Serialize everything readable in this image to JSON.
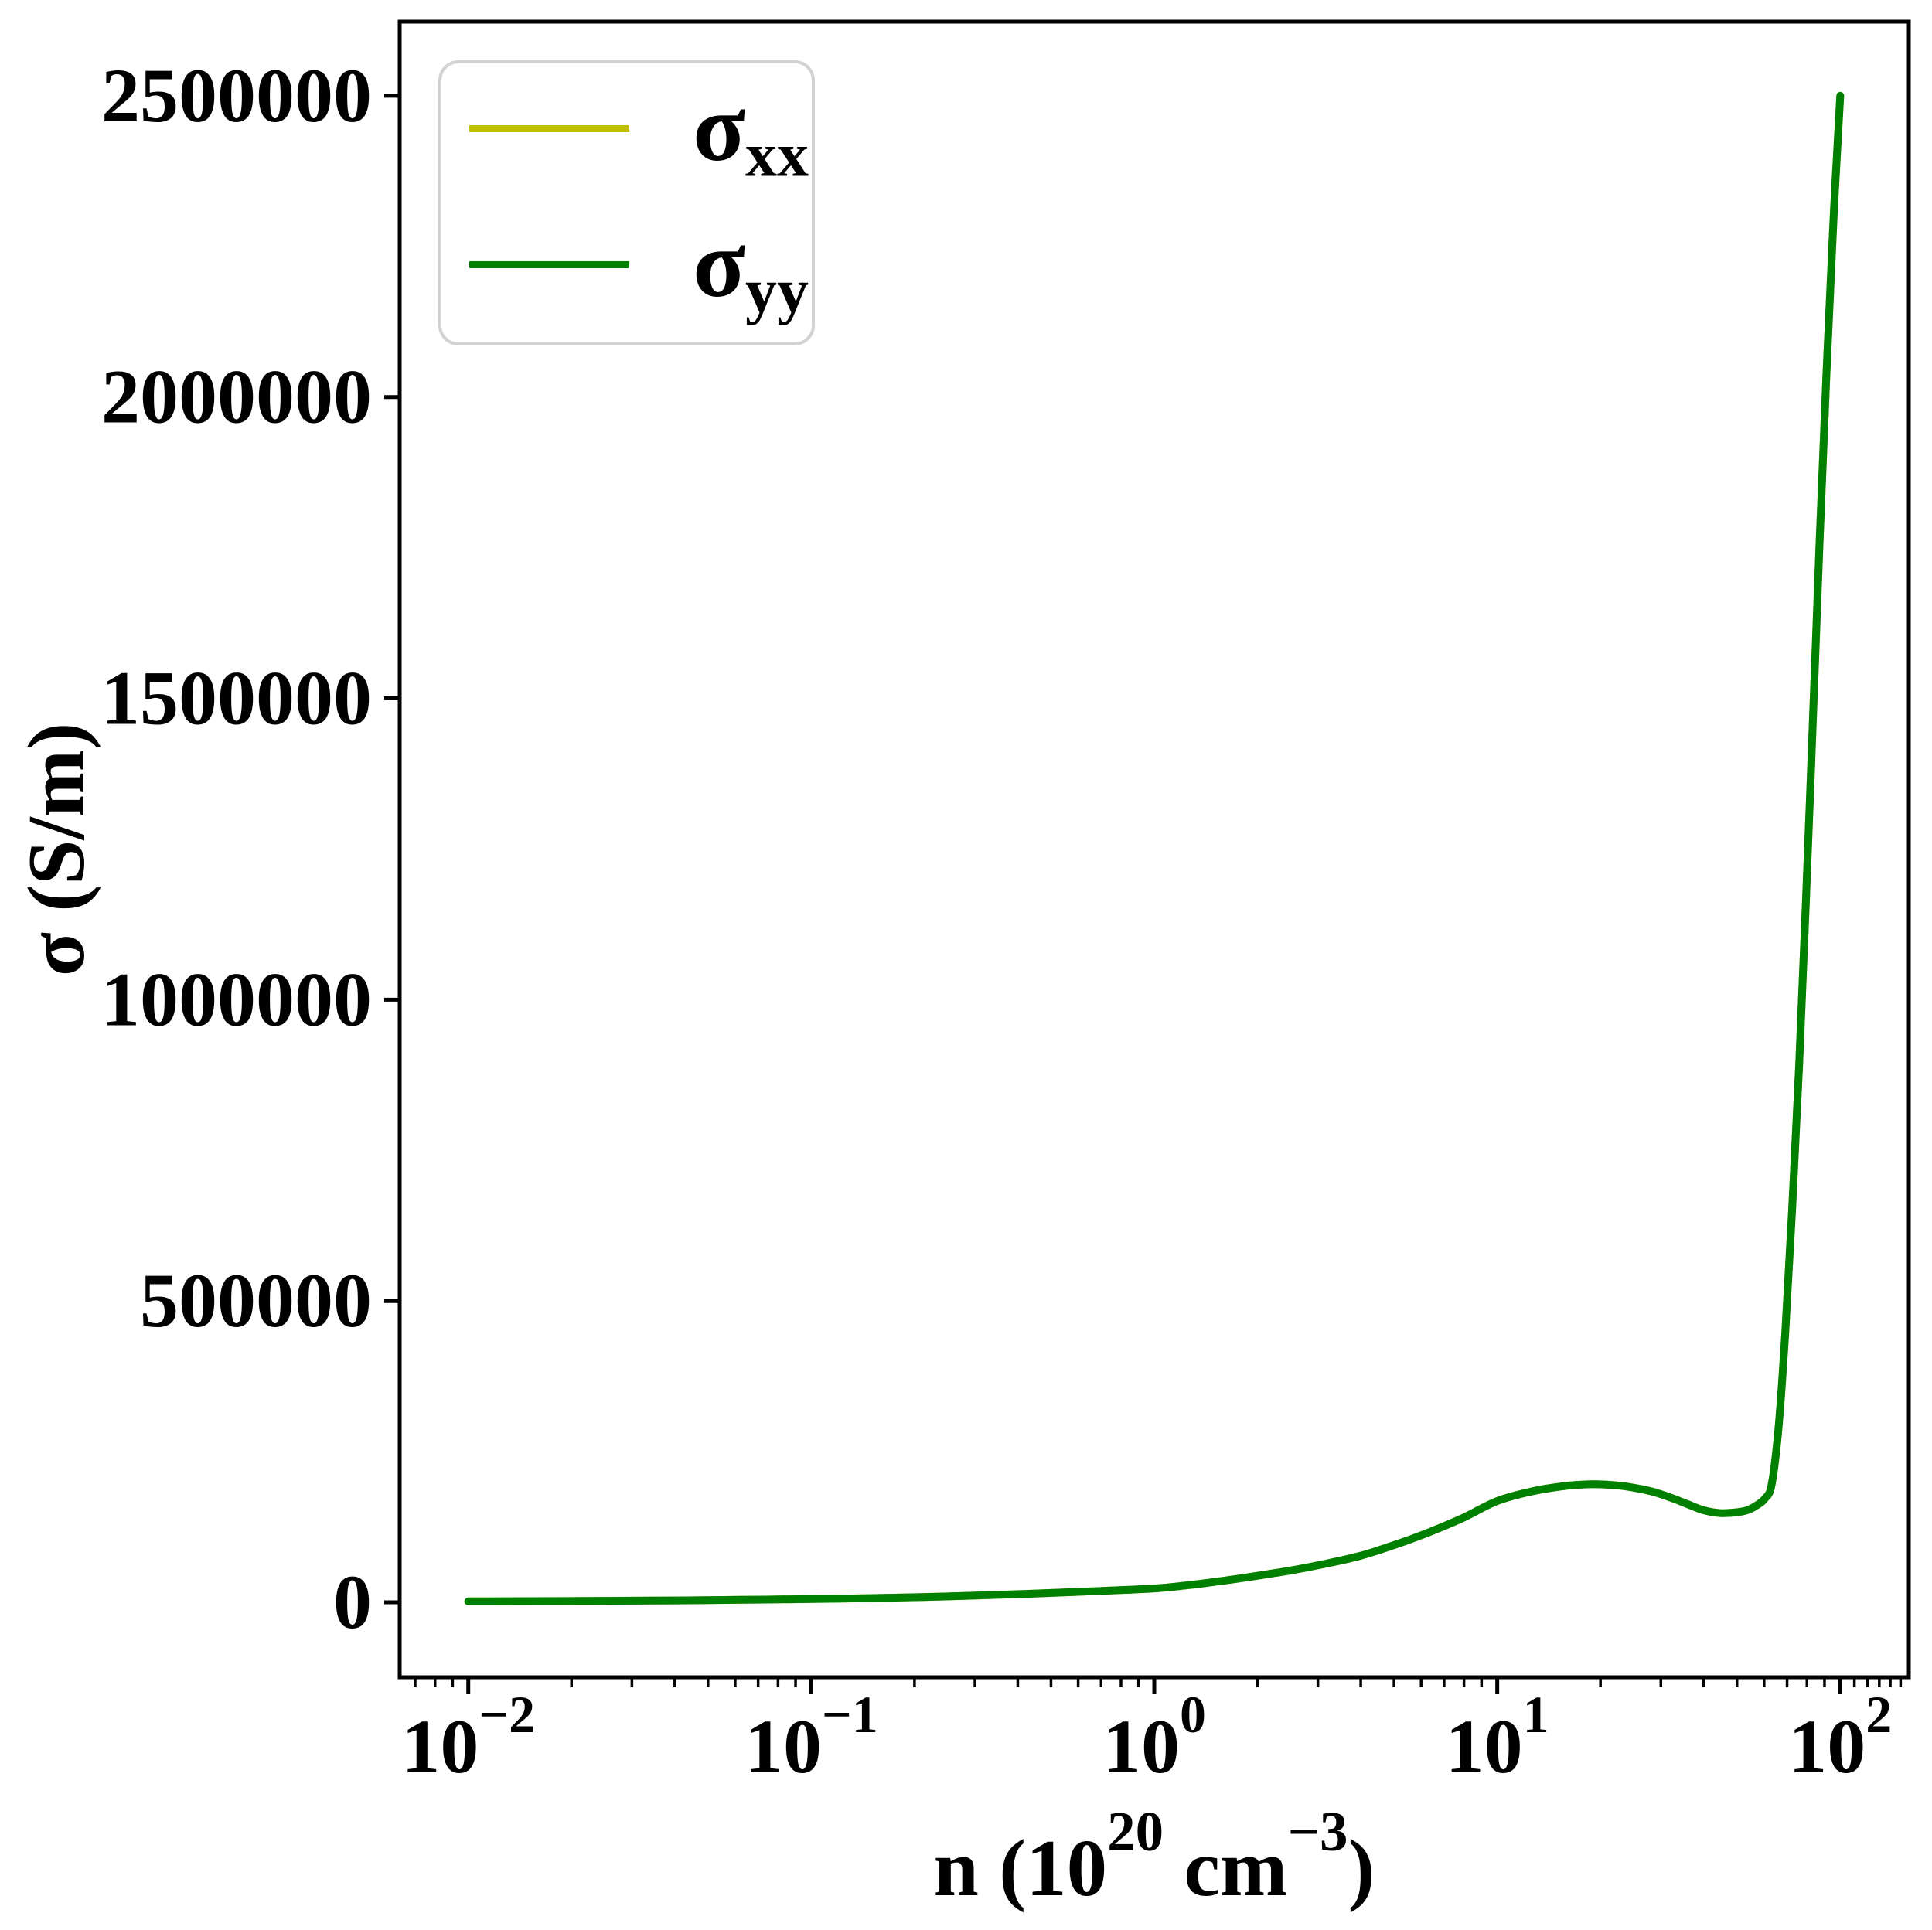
{
  "page": {
    "background": "#ffffff"
  },
  "chart_data": {
    "type": "line",
    "x_scale": "log",
    "title": "",
    "xlabel_parts": {
      "base": "n (10",
      "exp": "20",
      "unit": " cm",
      "unit_exp": "−3",
      "close": ")"
    },
    "ylabel_parts": {
      "sigma": "σ",
      "rest": " (S/m)"
    },
    "xlim": [
      0.00631,
      158.5
    ],
    "ylim": [
      -124400,
      2623000
    ],
    "grid": false,
    "legend_position": "upper-left",
    "x_ticks": [
      {
        "base": "10",
        "exp": "−2",
        "value": 0.01
      },
      {
        "base": "10",
        "exp": "−1",
        "value": 0.1
      },
      {
        "base": "10",
        "exp": "0",
        "value": 1
      },
      {
        "base": "10",
        "exp": "1",
        "value": 10
      },
      {
        "base": "10",
        "exp": "2",
        "value": 100
      }
    ],
    "x_minor_ticks_extra": [
      110,
      120,
      130,
      140,
      150
    ],
    "y_ticks": [
      {
        "label": "0",
        "value": 0
      },
      {
        "label": "500000",
        "value": 500000
      },
      {
        "label": "1000000",
        "value": 1000000
      },
      {
        "label": "1500000",
        "value": 1500000
      },
      {
        "label": "2000000",
        "value": 2000000
      },
      {
        "label": "2500000",
        "value": 2500000
      }
    ],
    "x": [
      0.01,
      0.0158,
      0.0251,
      0.0398,
      0.0631,
      0.1,
      0.158,
      0.251,
      0.398,
      0.631,
      1.0,
      1.26,
      1.58,
      2.0,
      2.51,
      3.16,
      3.98,
      5.01,
      6.31,
      7.94,
      10.0,
      12.6,
      15.8,
      19.0,
      22.4,
      25.1,
      28.2,
      31.6,
      35.5,
      39.8,
      44.7,
      50.1,
      53.7,
      57.5,
      60.3,
      63.1,
      66.1,
      69.2,
      72.4,
      75.9,
      79.4,
      83.2,
      87.1,
      91.2,
      95.5,
      100.0
    ],
    "series": [
      {
        "name_base": "σ",
        "name_sub": "xx",
        "color": "#bfbf00",
        "values": [
          1500,
          1900,
          2400,
          3100,
          4100,
          5400,
          7200,
          9800,
          13500,
          17800,
          23000,
          28500,
          35500,
          44000,
          53000,
          64000,
          77000,
          95000,
          116000,
          140000,
          168000,
          184000,
          193000,
          196000,
          194000,
          190000,
          184000,
          175000,
          164000,
          153000,
          148000,
          149500,
          153000,
          162000,
          172000,
          195000,
          290000,
          450000,
          650000,
          890000,
          1160000,
          1460000,
          1760000,
          2040000,
          2290000,
          2500000
        ]
      },
      {
        "name_base": "σ",
        "name_sub": "yy",
        "color": "#008000",
        "values": [
          1500,
          1900,
          2400,
          3100,
          4100,
          5400,
          7200,
          9800,
          13500,
          17800,
          23000,
          28500,
          35500,
          44000,
          53000,
          64000,
          77000,
          95000,
          116000,
          140000,
          168000,
          184000,
          193000,
          196000,
          194000,
          190000,
          184000,
          175000,
          164000,
          153000,
          148000,
          149500,
          153000,
          162000,
          172000,
          195000,
          290000,
          450000,
          650000,
          890000,
          1160000,
          1460000,
          1760000,
          2040000,
          2290000,
          2500000
        ]
      }
    ]
  }
}
